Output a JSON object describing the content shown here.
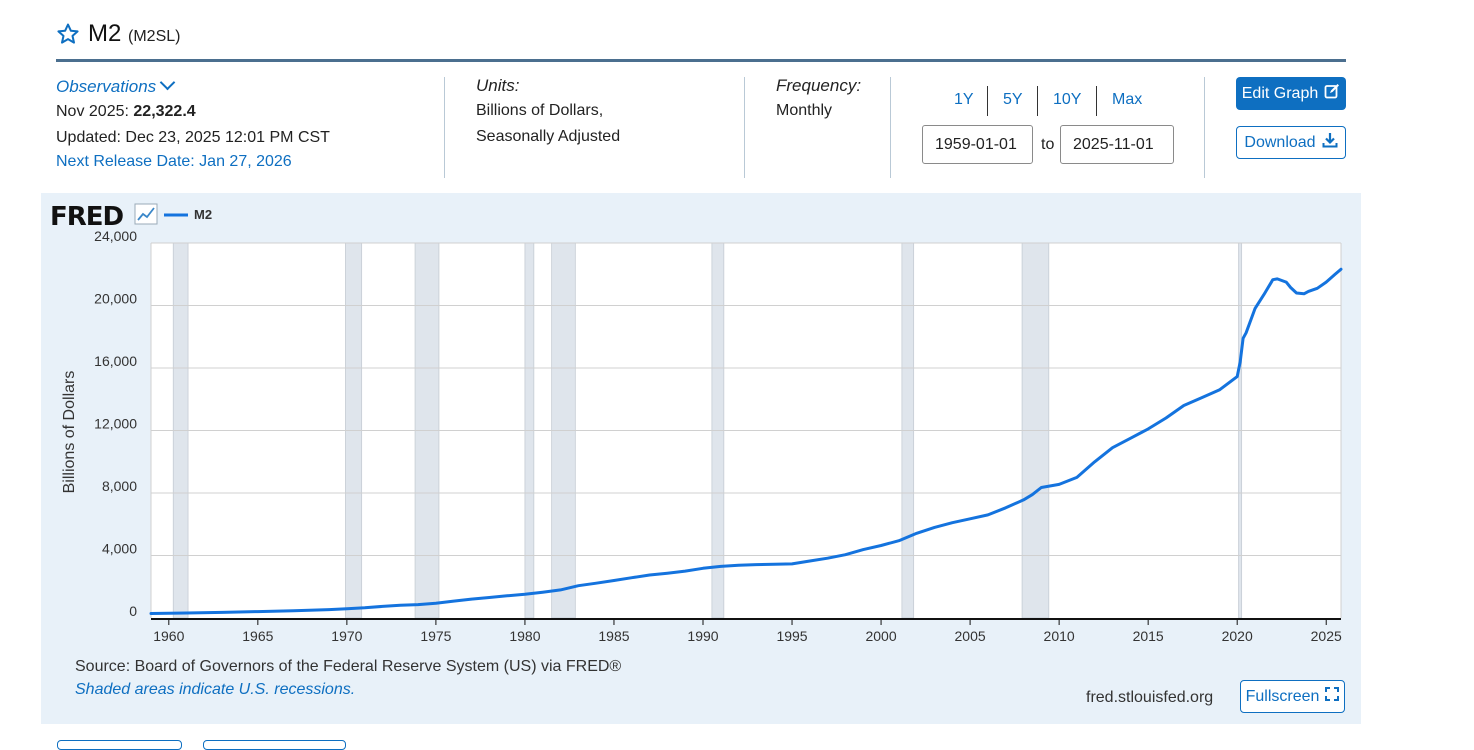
{
  "series": {
    "title": "M2",
    "code": "(M2SL)"
  },
  "observations": {
    "label": "Observations",
    "latest_date": "Nov 2025:",
    "latest_value": "22,322.4",
    "updated": "Updated: Dec 23, 2025 12:01 PM CST",
    "next_release": "Next Release Date: Jan 27, 2026"
  },
  "units": {
    "label": "Units:",
    "line1": "Billions of Dollars,",
    "line2": "Seasonally Adjusted"
  },
  "frequency": {
    "label": "Frequency:",
    "value": "Monthly"
  },
  "range": {
    "buttons": [
      "1Y",
      "5Y",
      "10Y",
      "Max"
    ],
    "from": "1959-01-01",
    "to_label": "to",
    "to": "2025-11-01"
  },
  "actions": {
    "edit_graph": "Edit Graph",
    "download": "Download",
    "fullscreen": "Fullscreen"
  },
  "icons": {
    "title_star": "star-outline-icon",
    "observations_toggle": "chevron-down-icon",
    "edit": "edit-icon",
    "download": "download-icon",
    "fullscreen": "expand-icon",
    "fred_logo_graph": "line-chart-icon"
  },
  "colors": {
    "accent": "#0e6fc1",
    "series_line": "#1473de",
    "recession_shade": "#dfe5ec",
    "panel_background": "#e8f1f9"
  },
  "brand": "FRED",
  "footer": {
    "source": "Source: Board of Governors of the Federal Reserve System (US) via FRED®",
    "shaded_note": "Shaded areas indicate U.S. recessions.",
    "url": "fred.stlouisfed.org"
  },
  "chart_data": {
    "type": "line",
    "ylabel": "Billions of Dollars",
    "xlabel": "",
    "ylim": [
      0,
      24000
    ],
    "xlim": [
      1959.0,
      2025.83
    ],
    "yticks": [
      0,
      4000,
      8000,
      12000,
      16000,
      20000,
      24000
    ],
    "ytick_labels": [
      "0",
      "4,000",
      "8,000",
      "12,000",
      "16,000",
      "20,000",
      "24,000"
    ],
    "xticks": [
      1960,
      1965,
      1970,
      1975,
      1980,
      1985,
      1990,
      1995,
      2000,
      2005,
      2010,
      2015,
      2020,
      2025
    ],
    "xtick_labels": [
      "1960",
      "1965",
      "1970",
      "1975",
      "1980",
      "1985",
      "1990",
      "1995",
      "2000",
      "2005",
      "2010",
      "2015",
      "2020",
      "2025"
    ],
    "grid": true,
    "legend_placement": "top-left",
    "series": [
      {
        "name": "M2",
        "x": [
          1959.0,
          1960.0,
          1961.0,
          1963.0,
          1965.0,
          1967.0,
          1969.0,
          1970.0,
          1971.0,
          1972.0,
          1973.0,
          1974.0,
          1975.0,
          1976.0,
          1977.0,
          1978.0,
          1979.0,
          1980.0,
          1981.0,
          1982.0,
          1983.0,
          1984.0,
          1985.0,
          1986.0,
          1987.0,
          1988.0,
          1989.0,
          1990.0,
          1991.0,
          1992.0,
          1993.0,
          1994.0,
          1995.0,
          1996.0,
          1997.0,
          1998.0,
          1999.0,
          2000.0,
          2001.0,
          2002.0,
          2003.0,
          2004.0,
          2005.0,
          2006.0,
          2007.0,
          2008.0,
          2008.5,
          2009.0,
          2010.0,
          2011.0,
          2012.0,
          2013.0,
          2014.0,
          2015.0,
          2016.0,
          2017.0,
          2018.0,
          2019.0,
          2020.0,
          2020.17,
          2020.33,
          2020.5,
          2021.0,
          2021.5,
          2022.0,
          2022.25,
          2022.75,
          2023.0,
          2023.33,
          2023.75,
          2024.0,
          2024.5,
          2025.0,
          2025.5,
          2025.83
        ],
        "y": [
          290,
          300,
          320,
          360,
          410,
          460,
          540,
          590,
          650,
          740,
          810,
          860,
          950,
          1080,
          1210,
          1310,
          1420,
          1520,
          1650,
          1800,
          2070,
          2230,
          2400,
          2580,
          2750,
          2870,
          3000,
          3180,
          3300,
          3380,
          3420,
          3440,
          3460,
          3650,
          3830,
          4050,
          4380,
          4640,
          4950,
          5420,
          5800,
          6100,
          6350,
          6600,
          7050,
          7560,
          7900,
          8350,
          8550,
          9000,
          10000,
          10900,
          11500,
          12100,
          12800,
          13600,
          14100,
          14600,
          15450,
          16400,
          17900,
          18250,
          19800,
          20700,
          21650,
          21700,
          21500,
          21150,
          20800,
          20750,
          20900,
          21100,
          21500,
          22000,
          22322.4
        ]
      }
    ],
    "recessions": [
      [
        1960.25,
        1961.08
      ],
      [
        1969.92,
        1970.83
      ],
      [
        1973.83,
        1975.17
      ],
      [
        1980.0,
        1980.5
      ],
      [
        1981.5,
        1982.83
      ],
      [
        1990.5,
        1991.17
      ],
      [
        2001.17,
        2001.83
      ],
      [
        2007.92,
        2009.42
      ],
      [
        2020.08,
        2020.25
      ]
    ]
  }
}
